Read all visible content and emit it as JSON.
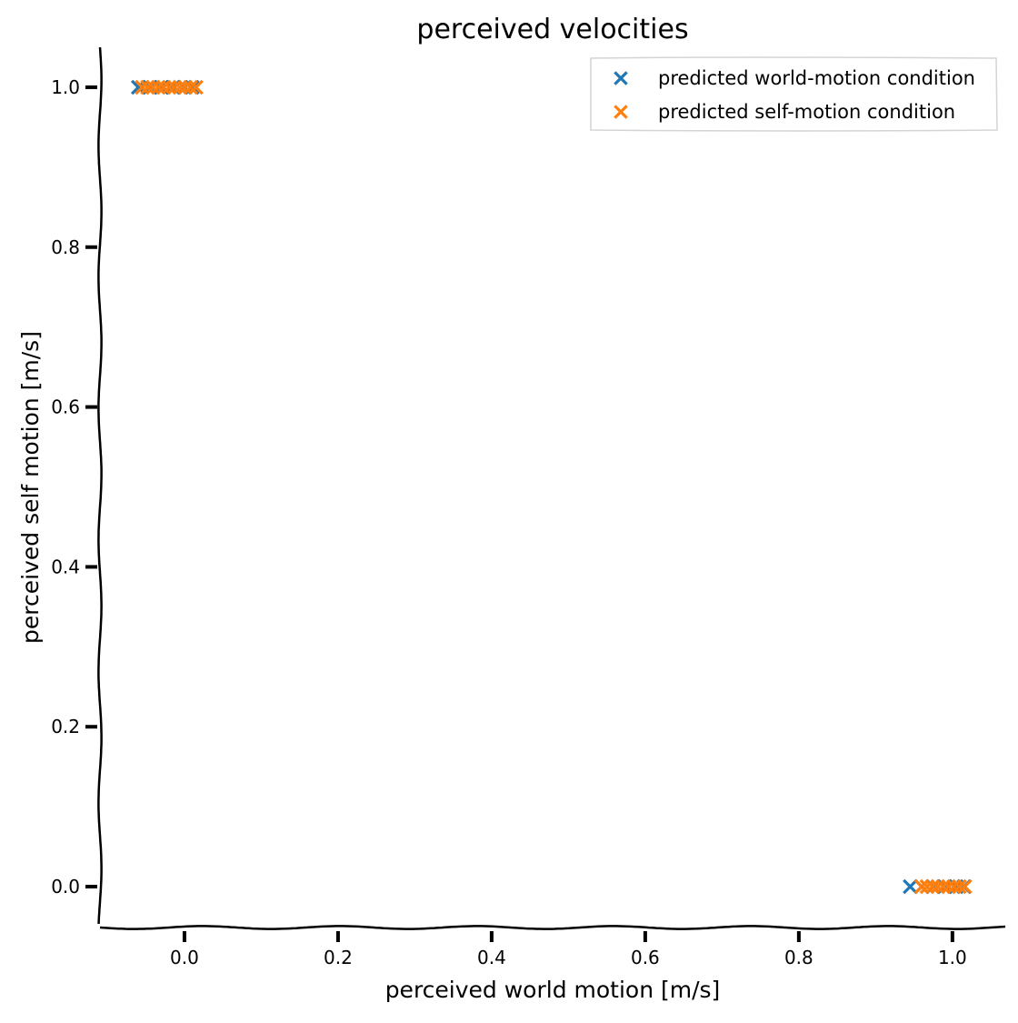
{
  "chart_data": {
    "type": "scatter",
    "title": "perceived velocities",
    "xlabel": "perceived world motion [m/s]",
    "ylabel": "perceived self motion [m/s]",
    "xlim": [
      -0.11,
      1.07
    ],
    "ylim": [
      -0.05,
      1.05
    ],
    "xticks": [
      "0.0",
      "0.2",
      "0.4",
      "0.6",
      "0.8",
      "1.0"
    ],
    "yticks": [
      "0.0",
      "0.2",
      "0.4",
      "0.6",
      "0.8",
      "1.0"
    ],
    "grid": false,
    "legend_position": "top-right",
    "marker": "x",
    "series": [
      {
        "name": "predicted world-motion condition",
        "color": "#1f77b4",
        "points": [
          [
            -0.06,
            1.0
          ],
          [
            -0.045,
            1.0
          ],
          [
            -0.03,
            1.0
          ],
          [
            -0.015,
            1.0
          ],
          [
            0.0,
            1.0
          ],
          [
            0.01,
            1.0
          ],
          [
            0.945,
            0.0
          ],
          [
            0.96,
            0.0
          ],
          [
            0.975,
            0.0
          ],
          [
            0.99,
            0.0
          ],
          [
            1.005,
            0.0
          ],
          [
            1.015,
            0.0
          ]
        ]
      },
      {
        "name": "predicted self-motion condition",
        "color": "#ff7f0e",
        "points": [
          [
            -0.055,
            1.0
          ],
          [
            -0.048,
            1.0
          ],
          [
            -0.041,
            1.0
          ],
          [
            -0.034,
            1.0
          ],
          [
            -0.027,
            1.0
          ],
          [
            -0.02,
            1.0
          ],
          [
            -0.013,
            1.0
          ],
          [
            -0.006,
            1.0
          ],
          [
            0.001,
            1.0
          ],
          [
            0.008,
            1.0
          ],
          [
            0.015,
            1.0
          ],
          [
            0.96,
            0.0
          ],
          [
            0.967,
            0.0
          ],
          [
            0.974,
            0.0
          ],
          [
            0.981,
            0.0
          ],
          [
            0.988,
            0.0
          ],
          [
            0.995,
            0.0
          ],
          [
            1.002,
            0.0
          ],
          [
            1.009,
            0.0
          ],
          [
            1.016,
            0.0
          ]
        ]
      }
    ]
  }
}
